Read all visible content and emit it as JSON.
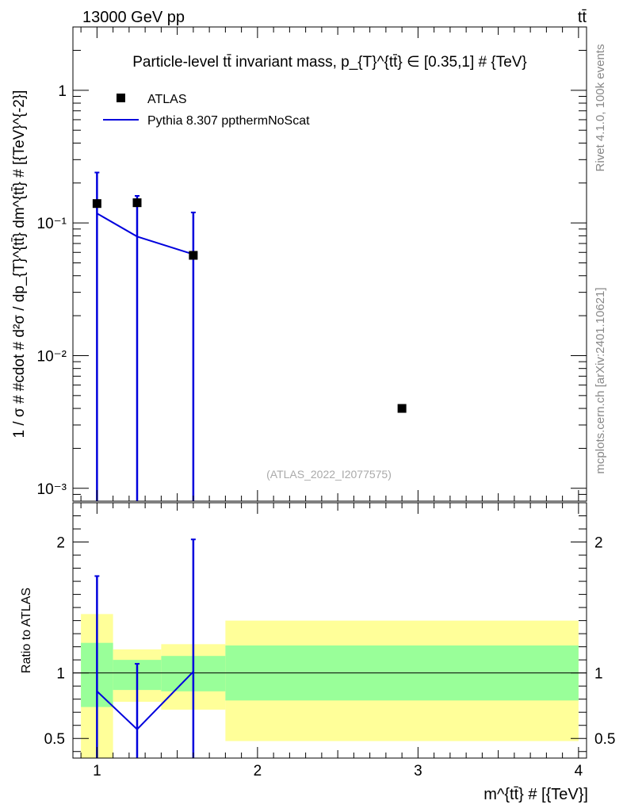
{
  "header": {
    "left": "13000 GeV pp",
    "right": "tt̄"
  },
  "side_labels": {
    "rivet": "Rivet 4.1.0,  100k events",
    "mcplots": "mcplots.cern.ch [arXiv:2401.10621]"
  },
  "watermark": "(ATLAS_2022_I2077575)",
  "colors": {
    "data": "#000000",
    "mc": "#0000dd",
    "band_inner": "#99ff99",
    "band_outer": "#ffff99"
  },
  "chart_data": [
    {
      "type": "scatter",
      "title": "Particle-level tt̄ invariant mass, p_{T}^{tt̄} ∈ [0.35,1] # {TeV}",
      "ylabel": "1 / σ # #cdot # d²σ / dp_{T}^{tt̄} dm^{tt̄} # [{TeV}^{-2}]",
      "yscale": "log",
      "ylim": [
        0.0008,
        3
      ],
      "xlim": [
        0.85,
        4.05
      ],
      "yticks": [
        {
          "value": 1,
          "label": "1"
        },
        {
          "value": 0.1,
          "label": "10⁻¹"
        },
        {
          "value": 0.01,
          "label": "10⁻²"
        },
        {
          "value": 0.001,
          "label": "10⁻³"
        }
      ],
      "legend": [
        {
          "label": "ATLAS",
          "kind": "marker"
        },
        {
          "label": "Pythia 8.307 ppthermNoScat",
          "kind": "line"
        }
      ],
      "series": [
        {
          "name": "ATLAS",
          "x": [
            1.0,
            1.25,
            1.6,
            2.9
          ],
          "y": [
            0.14,
            0.142,
            0.057,
            0.004
          ]
        },
        {
          "name": "Pythia 8.307 ppthermNoScat",
          "x": [
            1.0,
            1.25,
            1.6
          ],
          "y": [
            0.118,
            0.079,
            0.058
          ],
          "yerr_up": [
            0.24,
            0.16,
            0.12
          ],
          "yerr_down": [
            0.0001,
            0.0001,
            0.0001
          ]
        }
      ]
    },
    {
      "type": "line",
      "ylabel": "Ratio to ATLAS",
      "xlabel": "m^{tt̄} # [{TeV}]",
      "ylim": [
        0.35,
        2.3
      ],
      "xlim": [
        0.85,
        4.05
      ],
      "xticks": [
        {
          "value": 1,
          "label": "1"
        },
        {
          "value": 2,
          "label": "2"
        },
        {
          "value": 3,
          "label": "3"
        },
        {
          "value": 4,
          "label": "4"
        }
      ],
      "yticks": [
        {
          "value": 0.5,
          "label": "0.5"
        },
        {
          "value": 1,
          "label": "1"
        },
        {
          "value": 2,
          "label": "2"
        }
      ],
      "bands": [
        {
          "x0": 0.9,
          "x1": 1.1,
          "inner": [
            0.74,
            1.23
          ],
          "outer": [
            0.35,
            1.45
          ]
        },
        {
          "x0": 1.1,
          "x1": 1.4,
          "inner": [
            0.87,
            1.1
          ],
          "outer": [
            0.78,
            1.18
          ]
        },
        {
          "x0": 1.4,
          "x1": 1.8,
          "inner": [
            0.86,
            1.13
          ],
          "outer": [
            0.72,
            1.22
          ]
        },
        {
          "x0": 1.8,
          "x1": 4.0,
          "inner": [
            0.79,
            1.21
          ],
          "outer": [
            0.48,
            1.4
          ]
        }
      ],
      "series": [
        {
          "name": "Pythia 8.307 ppthermNoScat",
          "x": [
            1.0,
            1.25,
            1.6
          ],
          "y": [
            0.86,
            0.57,
            1.01
          ],
          "yerr_up": [
            1.74,
            1.07,
            2.02
          ],
          "yerr_down": [
            0.35,
            0.35,
            0.35
          ]
        }
      ]
    }
  ]
}
